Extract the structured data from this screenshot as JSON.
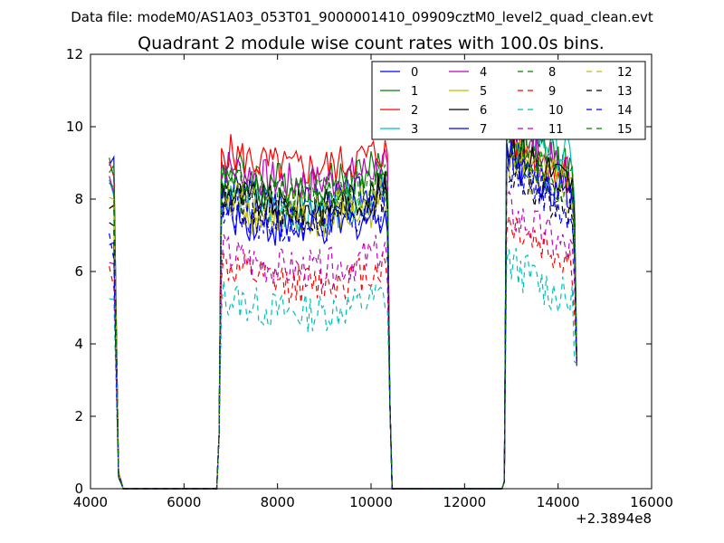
{
  "chart_data": {
    "type": "line",
    "suptitle": "Data file: modeM0/AS1A03_053T01_9000001410_09909cztM0_level2_quad_clean.evt",
    "title": "Quadrant 2 module wise count rates with 100.0s bins.",
    "xlabel": "",
    "ylabel": "",
    "x_offset_label": "+2.3894e8",
    "xlim": [
      4000,
      16000
    ],
    "ylim": [
      0,
      12
    ],
    "x_ticks": [
      "4000",
      "6000",
      "8000",
      "10000",
      "12000",
      "14000",
      "16000"
    ],
    "y_ticks": [
      "0",
      "2",
      "4",
      "6",
      "8",
      "10",
      "12"
    ],
    "legend_position": "top-right",
    "x_segments": [
      {
        "start": 4400,
        "end": 4500
      },
      {
        "start": 6750,
        "end": 10350
      },
      {
        "start": 12900,
        "end": 14400
      }
    ],
    "series": [
      {
        "name": "0",
        "color": "#0000ff",
        "style": "solid",
        "seg_means": [
          9.1,
          8.0,
          8.4
        ]
      },
      {
        "name": "1",
        "color": "#008000",
        "style": "solid",
        "seg_means": [
          9.0,
          8.6,
          9.2
        ]
      },
      {
        "name": "2",
        "color": "#ff0000",
        "style": "solid",
        "seg_means": [
          8.8,
          9.0,
          9.0
        ]
      },
      {
        "name": "3",
        "color": "#00bfbf",
        "style": "solid",
        "seg_means": [
          8.4,
          7.8,
          9.5
        ]
      },
      {
        "name": "4",
        "color": "#bf00bf",
        "style": "solid",
        "seg_means": [
          8.6,
          8.6,
          9.0
        ]
      },
      {
        "name": "5",
        "color": "#bfbf00",
        "style": "solid",
        "seg_means": [
          7.8,
          7.5,
          8.6
        ]
      },
      {
        "name": "6",
        "color": "#000000",
        "style": "solid",
        "seg_means": [
          7.9,
          7.9,
          8.8
        ]
      },
      {
        "name": "7",
        "color": "#0000ff",
        "style": "solid",
        "seg_means": [
          7.0,
          7.3,
          8.4
        ]
      },
      {
        "name": "8",
        "color": "#008000",
        "style": "dashed",
        "seg_means": [
          8.9,
          8.3,
          8.9
        ]
      },
      {
        "name": "9",
        "color": "#ff0000",
        "style": "dashed",
        "seg_means": [
          6.0,
          5.8,
          6.6
        ]
      },
      {
        "name": "10",
        "color": "#00bfbf",
        "style": "dashed",
        "seg_means": [
          5.2,
          5.0,
          5.5
        ]
      },
      {
        "name": "11",
        "color": "#bf00bf",
        "style": "dashed",
        "seg_means": [
          6.3,
          6.2,
          6.9
        ]
      },
      {
        "name": "12",
        "color": "#bfbf00",
        "style": "dashed",
        "seg_means": [
          8.2,
          7.8,
          8.3
        ]
      },
      {
        "name": "13",
        "color": "#000000",
        "style": "dashed",
        "seg_means": [
          7.6,
          7.7,
          8.0
        ]
      },
      {
        "name": "14",
        "color": "#0000ff",
        "style": "dashed",
        "seg_means": [
          6.8,
          7.4,
          8.1
        ]
      },
      {
        "name": "15",
        "color": "#008000",
        "style": "dashed",
        "seg_means": [
          8.3,
          8.1,
          8.7
        ]
      }
    ]
  }
}
